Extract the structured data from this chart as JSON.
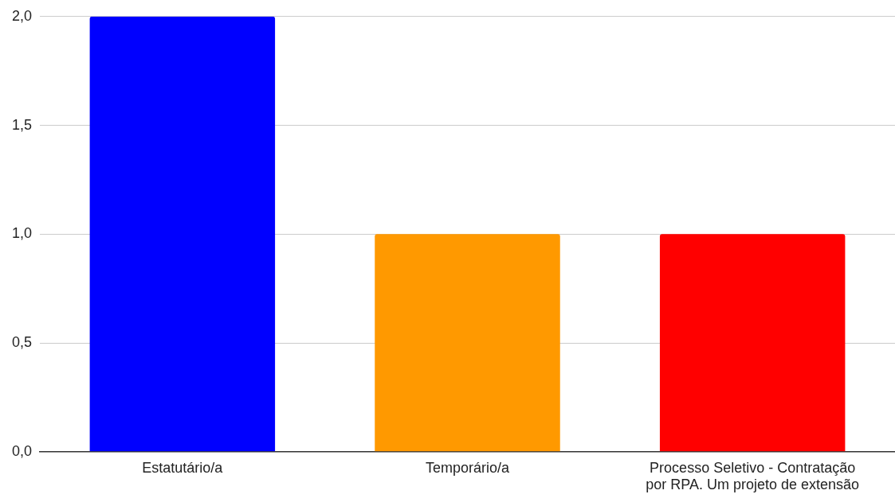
{
  "chart_data": {
    "type": "bar",
    "categories": [
      "Estatutário/a",
      "Temporário/a",
      "Processo Seletivo - Contratação por RPA. Um projeto de extensão"
    ],
    "values": [
      2,
      1,
      1
    ],
    "colors": [
      "#0000ff",
      "#ff9900",
      "#ff0000"
    ],
    "ylim": [
      0,
      2
    ],
    "yticks": [
      {
        "value": 0,
        "label": "0,0"
      },
      {
        "value": 0.5,
        "label": "0,5"
      },
      {
        "value": 1,
        "label": "1,0"
      },
      {
        "value": 1.5,
        "label": "1,5"
      },
      {
        "value": 2,
        "label": "2,0"
      }
    ],
    "grid": "y"
  }
}
